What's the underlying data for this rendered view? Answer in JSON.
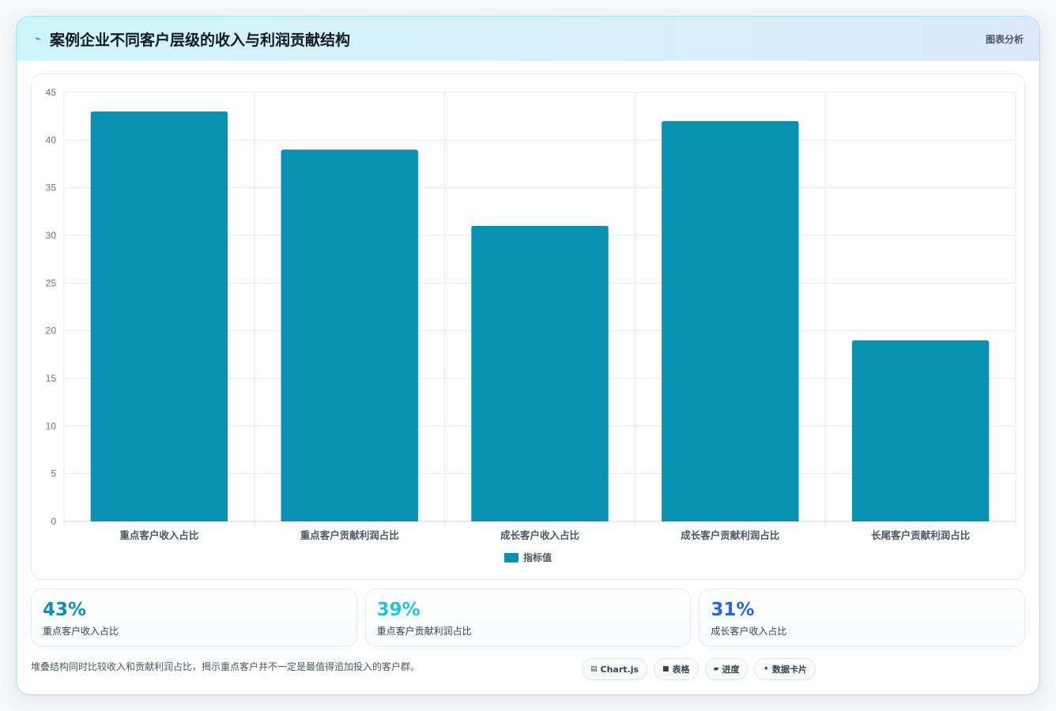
{
  "header": {
    "title": "案例企业不同客户层级的收入与利润贡献结构",
    "tag": "图表分析",
    "icon": "lightning-icon"
  },
  "chart_data": {
    "type": "bar",
    "categories": [
      "重点客户收入占比",
      "重点客户贡献利润占比",
      "成长客户收入占比",
      "成长客户贡献利润占比",
      "长尾客户贡献利润占比"
    ],
    "series": [
      {
        "name": "指标值",
        "values": [
          43,
          39,
          31,
          42,
          19
        ]
      }
    ],
    "ylim": [
      0,
      45
    ],
    "yticks": [
      0,
      5,
      10,
      15,
      20,
      25,
      30,
      35,
      40,
      45
    ],
    "grid": true,
    "legend": "bottom",
    "color": "#0891b2"
  },
  "stats": [
    {
      "value": "43%",
      "label": "重点客户收入占比",
      "color": "#0891b2"
    },
    {
      "value": "39%",
      "label": "重点客户贡献利润占比",
      "color": "#22c3dd"
    },
    {
      "value": "31%",
      "label": "成长客户收入占比",
      "color": "#2563eb"
    }
  ],
  "footer": {
    "note": "堆叠结构同时比较收入和贡献利润占比，揭示重点客户并不一定是最值得追加投入的客户群。",
    "chips": [
      {
        "icon": "▤",
        "icon_name": "chart-icon",
        "label": "Chart.js"
      },
      {
        "icon": "■",
        "icon_name": "table-icon",
        "label": "表格"
      },
      {
        "icon": "▰",
        "icon_name": "progress-icon",
        "label": "进度"
      },
      {
        "icon": "✦",
        "icon_name": "sparkle-icon",
        "label": "数据卡片"
      }
    ]
  }
}
